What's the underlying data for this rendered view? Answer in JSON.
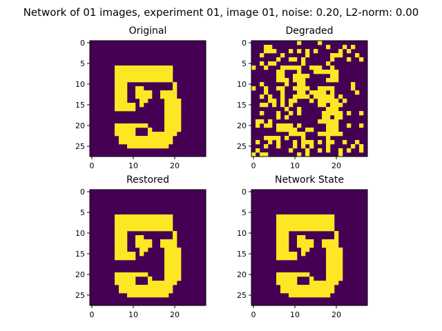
{
  "chart_data": {
    "type": "heatmap",
    "title": "Network of 01 images, experiment 01, image 01, noise: 0.20, L2-norm: 0.00",
    "colormap": {
      "background": "#440154",
      "foreground": "#fde725"
    },
    "grid_size": 28,
    "x_ticks": [
      0,
      10,
      20
    ],
    "y_ticks": [
      0,
      5,
      10,
      15,
      20,
      25
    ],
    "xlim": [
      -0.5,
      27.5
    ],
    "ylim": [
      27.5,
      -0.5
    ],
    "panels": [
      {
        "name": "Original",
        "title": "Original",
        "rows": [
          "............................",
          "............................",
          "............................",
          "............................",
          "............................",
          "............................",
          "......##############........",
          "......##############........",
          "......##############........",
          "......##############........",
          "......###...........#.......",
          "......###..##.......#.......",
          "......###..####..####.......",
          "......###..####..####.......",
          "......###...##....####......",
          "......#####.#.....####......",
          "......#####.......####......",
          "..................####......",
          "..................####......",
          "..................####......",
          "......########....####......",
          "......#####...#...####......",
          "......#####...#######.......",
          ".......#############........",
          ".......#############........",
          ".........##########.........",
          "............................",
          "............................"
        ]
      },
      {
        "name": "Degraded",
        "title": "Degraded",
        "rows": [
          "...........#....#...........",
          "...##.............#...#.#...",
          "...###...#.#.#.#.....#.#....",
          "..#....#.....#.....###...#..",
          "......#..##.#......#...#..#.",
          "..#.##......#.....#.........",
          "#..#...#####..###..#........",
          "......##...#...######.......",
          "......##..####.....##.......",
          "......###.###.....###.......",
          "..#.....#..##...........#...",
          "#..#..##..####..####....#...",
          "...#...#...##.####.#.....#..",
          "..#.#..#..####.#####.#......",
          "....##.#.##...#.#####.#.....",
          "..##.#.#.#......##.###......",
          "........#..#......###.......",
          "..#...#..#.#.....#####.#..#.",
          "......#.#........##.##......",
          ".##.#...........#####.......",
          ".#.##.####.#......###..#..#.",
          "......#####..##...###.......",
          ".........####...######......",
          "...####.#...#.....#.........",
          ".#..#.#...#.###.#.##..#..#..",
          "...#..#...#.#.#...#.....#.#.",
          ".#.......#...#..#.#..#.#..#.",
          "#.##.......#.#.......#......"
        ]
      },
      {
        "name": "Restored",
        "title": "Restored",
        "rows": [
          "............................",
          "............................",
          "............................",
          "............................",
          "............................",
          "............................",
          "......##############........",
          "......##############........",
          "......##############........",
          "......##############........",
          "......###...........#.......",
          "......###..##.......#.......",
          "......###..####..####.......",
          "......###..####..####.......",
          "......###...##....####......",
          "......#####.#.....####......",
          "......#####.......####......",
          "..................####......",
          "..................####......",
          "..................####......",
          "......########....####......",
          "......#####...#...####......",
          "......#####...#######.......",
          ".......#############........",
          ".......#############........",
          ".........##########.........",
          "............................",
          "............................"
        ]
      },
      {
        "name": "Network State",
        "title": "Network State",
        "rows": [
          "............................",
          "............................",
          "............................",
          "............................",
          "............................",
          "............................",
          "......##############........",
          "......##############........",
          "......##############........",
          "......##############........",
          "......###...........#.......",
          "......###..##.......#.......",
          "......###..####..####.......",
          "......###..####..####.......",
          "......###...##....####......",
          "......#####.#.....####......",
          "......#####.......####......",
          "..................####......",
          "..................####......",
          "..................####......",
          "......########....####......",
          "......#####...#...####......",
          "......#####...#######.......",
          ".......#############........",
          ".......#############........",
          ".........##########.........",
          "............................",
          "............................"
        ]
      }
    ]
  }
}
